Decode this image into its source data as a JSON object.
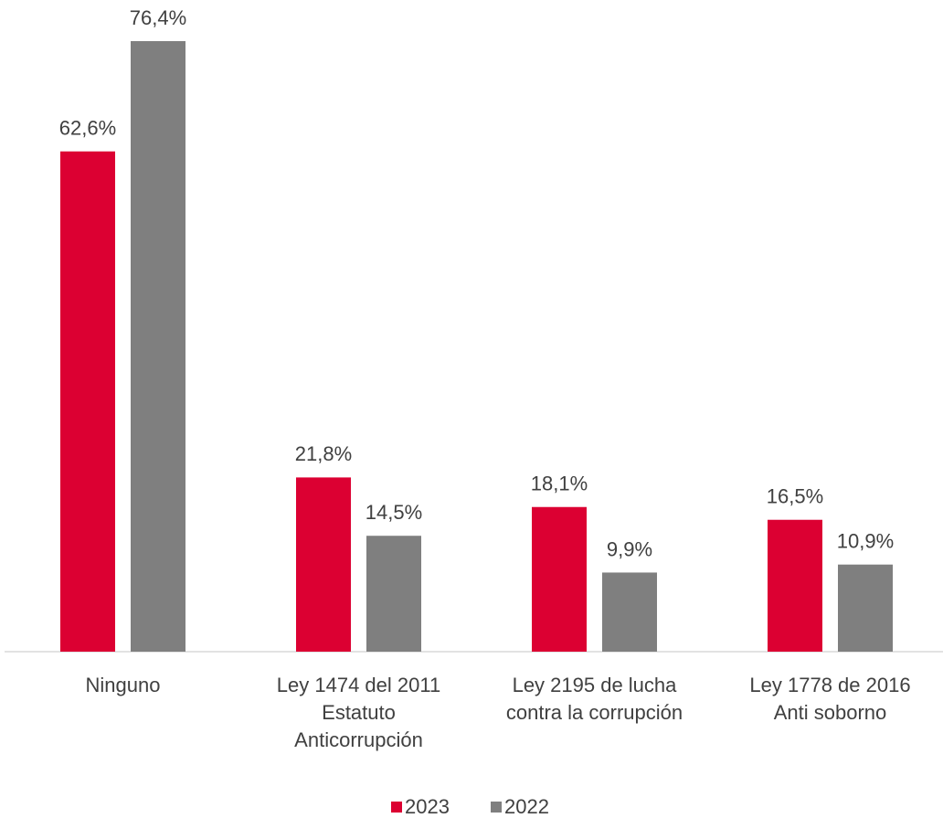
{
  "chart_data": {
    "type": "bar",
    "categories": [
      "Ninguno",
      "Ley 1474 del 2011\nEstatuto\nAnticorrupción",
      "Ley 2195 de lucha\ncontra la corrupción",
      "Ley 1778 de 2016\nAnti soborno"
    ],
    "series": [
      {
        "name": "2023",
        "color": "#dc0032",
        "values": [
          62.6,
          21.8,
          18.1,
          16.5
        ],
        "value_labels": [
          "62,6%",
          "21,8%",
          "18,1%",
          "16,5%"
        ]
      },
      {
        "name": "2022",
        "color": "#7f7f7f",
        "values": [
          76.4,
          14.5,
          9.9,
          10.9
        ],
        "value_labels": [
          "76,4%",
          "14,5%",
          "9,9%",
          "10,9%"
        ]
      }
    ],
    "legend": "bottom"
  }
}
